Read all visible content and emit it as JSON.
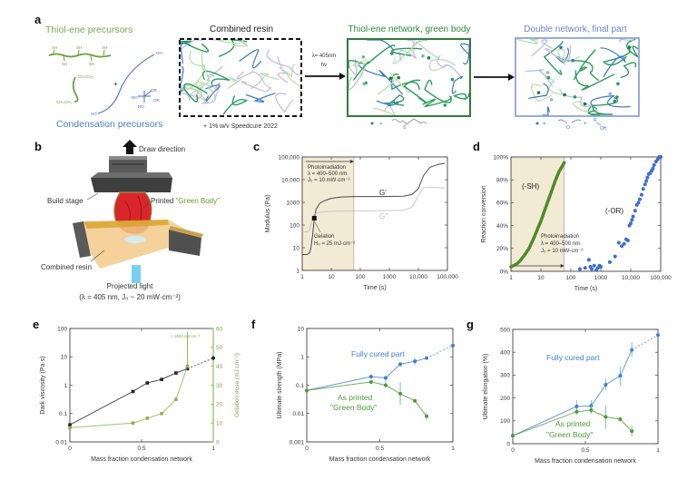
{
  "panel_labels": {
    "a": "a",
    "b": "b",
    "c": "c",
    "d": "d",
    "e": "e",
    "f": "f",
    "g": "g"
  },
  "colors": {
    "thiol_green": "#7aa84a",
    "network_green": "#2e8b3e",
    "condensation_blue": "#4a7fc0",
    "double_blue": "#6b85c9",
    "shade": "#f3ead6"
  },
  "panel_a": {
    "thiol_title": "Thiol-ene precursors",
    "condensation_title": "Condensation precursors",
    "combined_title": "Combined resin",
    "speedcure": "+ 1% w/v Speedcure 2022",
    "wavelength": "λ= 405nm",
    "hv": "hv",
    "green_title": "Thiol-ene network, green body",
    "double_title": "Double network, final part",
    "chem": {
      "sh": "SH",
      "vinyl": "CH=CH₂",
      "oh": "OH",
      "ho": "HO",
      "ro": "RO",
      "or": "OR",
      "plus": "+"
    },
    "green_legend": {
      "eq": "=",
      "s": "S"
    },
    "blue_legend": {
      "eq": "=",
      "o": "O",
      "plus": "+",
      "r": "R",
      "oh": "OH"
    }
  },
  "panel_b": {
    "draw_direction": "Draw direction",
    "build_stage": "Build stage",
    "printed": "Printed",
    "green_body": "\"Green Body\"",
    "combined_resin": "Combined resin",
    "projected_light": "Projected light",
    "light_params": "(λ = 405 nm, J₀ ~ 20 mW·cm⁻²)"
  },
  "chart_data": [
    {
      "id": "c",
      "type": "line",
      "xlabel": "Time (s)",
      "ylabel": "Modulus (Pa)",
      "x_axis": {
        "min": 1,
        "max": 100000,
        "log": true,
        "ticks": [
          1,
          10,
          100,
          1000,
          10000,
          100000
        ],
        "tick_labels": [
          "1",
          "10",
          "100",
          "1000",
          "10,000",
          "100,000"
        ]
      },
      "y_axis": {
        "min": 1,
        "max": 100000,
        "log": true,
        "ticks": [
          1,
          10,
          100,
          1000,
          10000,
          100000
        ],
        "tick_labels": [
          "1",
          "10",
          "100",
          "1000",
          "10,000",
          "100,000"
        ]
      },
      "shaded_range": [
        1,
        60
      ],
      "series": [
        {
          "name": "G'",
          "color": "#222222",
          "x": [
            1,
            1.5,
            1.8,
            2,
            2.3,
            2.6,
            3,
            4,
            6,
            10,
            20,
            60,
            500,
            3000,
            6000,
            10000,
            15000,
            25000,
            50000,
            80000
          ],
          "y": [
            5,
            5,
            6,
            10,
            40,
            200,
            500,
            900,
            1200,
            1500,
            1700,
            1800,
            1800,
            1850,
            2200,
            4000,
            15000,
            35000,
            48000,
            52000
          ]
        },
        {
          "name": "G''",
          "color": "#bbbbbb",
          "x": [
            1,
            1.5,
            1.8,
            2,
            2.3,
            2.6,
            3,
            4,
            6,
            10,
            20,
            60,
            500,
            3000,
            6000,
            10000,
            15000,
            25000,
            50000,
            80000
          ],
          "y": [
            50,
            50,
            60,
            100,
            200,
            300,
            330,
            360,
            380,
            400,
            410,
            420,
            430,
            450,
            600,
            2000,
            4500,
            4700,
            4500,
            4200
          ]
        }
      ],
      "markers": [
        {
          "x": 2.6,
          "y": 200
        }
      ],
      "annotations": {
        "photo": "Photoirradiation",
        "lambda": "λ = 400–500 nm",
        "dose_rate": "J₀ = 10 mW·cm⁻²",
        "gprime": "G'",
        "gdouble": "G''",
        "gelation": "Gelation",
        "gel_dose": "H₀ = 25 mJ·cm⁻²"
      }
    },
    {
      "id": "d",
      "type": "scatter",
      "xlabel": "Time (s)",
      "ylabel": "Reaction conversion",
      "x_axis": {
        "min": 1,
        "max": 100000,
        "log": true,
        "ticks": [
          1,
          10,
          100,
          1000,
          10000,
          100000
        ],
        "tick_labels": [
          "1",
          "10",
          "100",
          "1000",
          "10,000",
          "100,000"
        ]
      },
      "y_axis": {
        "min": 0,
        "max": 100,
        "log": false,
        "ticks": [
          0,
          20,
          40,
          60,
          80,
          100
        ],
        "tick_labels": [
          "0%",
          "20%",
          "40%",
          "60%",
          "80%",
          "100%"
        ]
      },
      "shaded_range": [
        1,
        60
      ],
      "series": [
        {
          "name": "(-SH)",
          "color": "#4e8a2a",
          "style": "thick-line",
          "x": [
            1,
            1.5,
            2,
            3,
            4,
            6,
            8,
            10,
            15,
            20,
            30,
            40,
            60
          ],
          "y": [
            4,
            6,
            9,
            15,
            20,
            30,
            38,
            44,
            57,
            66,
            79,
            87,
            95
          ]
        },
        {
          "name": "(-OR)",
          "color": "#3b6fd0",
          "style": "scatter",
          "x": [
            200,
            300,
            400,
            450,
            500,
            600,
            700,
            800,
            900,
            1000,
            2000,
            3000,
            4000,
            5000,
            6000,
            7000,
            8000,
            9000,
            10000,
            11000,
            12000,
            14000,
            16000,
            18000,
            20000,
            23000,
            26000,
            30000,
            33000,
            36000,
            40000,
            45000,
            50000,
            55000,
            60000,
            70000,
            80000,
            90000,
            100000
          ],
          "y": [
            2,
            3,
            10,
            4,
            2,
            5,
            1,
            3,
            5,
            4,
            8,
            13,
            25,
            22,
            24,
            28,
            27,
            40,
            42,
            45,
            48,
            53,
            58,
            60,
            63,
            67,
            72,
            76,
            79,
            82,
            85,
            86,
            88,
            90,
            93,
            96,
            98,
            100,
            100
          ]
        }
      ],
      "annotations": {
        "sh": "(-SH)",
        "or": "(-OR)",
        "photo": "Photoirradiation",
        "lambda": "λ = 400–500 nm",
        "dose_rate": "J₀ = 10 mW·cm⁻²"
      }
    },
    {
      "id": "e",
      "type": "line",
      "xlabel": "Mass fraction condensation network",
      "ylabel": "Dark viscosity (Pa·s)",
      "y2label": "Gelation dose (mJ cm⁻²)",
      "x_axis": {
        "min": 0,
        "max": 1,
        "log": false,
        "ticks": [
          0,
          0.5,
          1
        ],
        "tick_labels": [
          "0",
          "0.5",
          "1"
        ]
      },
      "y_axis": {
        "min": 0.01,
        "max": 100,
        "log": true,
        "ticks": [
          0.01,
          0.1,
          1,
          10,
          100
        ],
        "tick_labels": [
          "0.01",
          "0.1",
          "1",
          "10",
          "100"
        ]
      },
      "y2_axis": {
        "min": 0,
        "max": 60,
        "log": false,
        "ticks": [
          0,
          10,
          20,
          30,
          40,
          50,
          60
        ],
        "tick_labels": [
          "0",
          "10",
          "20",
          "30",
          "40",
          "50",
          "60"
        ],
        "color": "#7aa84a"
      },
      "series": [
        {
          "name": "",
          "color": "#222222",
          "marker": "square",
          "x": [
            0,
            0.44,
            0.54,
            0.64,
            0.74,
            0.82
          ],
          "y": [
            0.04,
            0.6,
            1.2,
            1.6,
            2.7,
            3.8
          ],
          "tail": {
            "x": [
              0.82,
              1
            ],
            "y": [
              3.8,
              9
            ]
          }
        },
        {
          "name": "",
          "color": "#8db04e",
          "marker": "square",
          "axis": "y2",
          "x": [
            0,
            0.44,
            0.54,
            0.64,
            0.74,
            0.82
          ],
          "y": [
            7.5,
            10,
            12.5,
            15,
            22.5,
            40
          ],
          "tail_up": true
        }
      ],
      "annotations": {
        "overflow": "> 1600 mJ cm⁻²"
      }
    },
    {
      "id": "f",
      "type": "line",
      "xlabel": "Mass fraction condensation network",
      "ylabel": "Ultimate strength (MPa)",
      "x_axis": {
        "min": 0,
        "max": 1,
        "log": false,
        "ticks": [
          0,
          0.5,
          1
        ],
        "tick_labels": [
          "0",
          "0.5",
          "1"
        ]
      },
      "y_axis": {
        "min": 0.001,
        "max": 10,
        "log": true,
        "ticks": [
          0.001,
          0.01,
          0.1,
          1,
          10
        ],
        "tick_labels": [
          "0.001",
          "0.01",
          "0.1",
          "1",
          "10"
        ]
      },
      "series": [
        {
          "name": "Fully cured part",
          "color": "#3d7fd0",
          "x": [
            0,
            0.44,
            0.54,
            0.64,
            0.74,
            0.82
          ],
          "y": [
            0.065,
            0.2,
            0.18,
            0.55,
            0.7,
            0.9
          ],
          "err_lo": [
            0.065,
            0.17,
            0.12,
            0.45,
            0.5,
            0.8
          ],
          "err_hi": [
            0.065,
            0.24,
            0.22,
            0.65,
            0.95,
            1.0
          ],
          "tail": {
            "x": [
              0.82,
              1
            ],
            "y": [
              0.9,
              2.5
            ]
          }
        },
        {
          "name": "As printed \"Green Body\"",
          "color": "#4e9a3a",
          "x": [
            0,
            0.44,
            0.54,
            0.64,
            0.74,
            0.82
          ],
          "y": [
            0.065,
            0.13,
            0.1,
            0.05,
            0.028,
            0.008
          ],
          "err_lo": [
            0.065,
            0.11,
            0.08,
            0.02,
            0.025,
            0.006
          ],
          "err_hi": [
            0.065,
            0.15,
            0.12,
            0.13,
            0.031,
            0.01
          ]
        }
      ],
      "annotations": {
        "cured": "Fully cured part",
        "printed1": "As printed",
        "printed2": "\"Green Body\""
      }
    },
    {
      "id": "g",
      "type": "line",
      "xlabel": "Mass fraction condensation network",
      "ylabel": "Ultimate elongation (%)",
      "x_axis": {
        "min": 0,
        "max": 1,
        "log": false,
        "ticks": [
          0,
          0.5,
          1
        ],
        "tick_labels": [
          "0",
          "0.5",
          "1"
        ]
      },
      "y_axis": {
        "min": 0,
        "max": 500,
        "log": false,
        "ticks": [
          0,
          100,
          200,
          300,
          400,
          500
        ],
        "tick_labels": [
          "0",
          "100",
          "200",
          "300",
          "400",
          "500"
        ]
      },
      "series": [
        {
          "name": "Fully cured part",
          "color": "#3d7fd0",
          "x": [
            0,
            0.44,
            0.54,
            0.64,
            0.74,
            0.82
          ],
          "y": [
            35,
            163,
            165,
            258,
            297,
            410
          ],
          "err_lo": [
            35,
            140,
            140,
            235,
            255,
            380
          ],
          "err_hi": [
            35,
            190,
            190,
            285,
            340,
            445
          ],
          "tail": {
            "x": [
              0.82,
              1
            ],
            "y": [
              410,
              475
            ]
          }
        },
        {
          "name": "As printed \"Green Body\"",
          "color": "#4e9a3a",
          "x": [
            0,
            0.44,
            0.54,
            0.64,
            0.74,
            0.82
          ],
          "y": [
            35,
            140,
            147,
            117,
            107,
            55
          ],
          "err_lo": [
            35,
            125,
            130,
            65,
            97,
            30
          ],
          "err_hi": [
            35,
            155,
            165,
            170,
            117,
            80
          ]
        }
      ],
      "annotations": {
        "cured": "Fully cured part",
        "printed1": "As printed",
        "printed2": "\"Green Body\""
      }
    }
  ]
}
